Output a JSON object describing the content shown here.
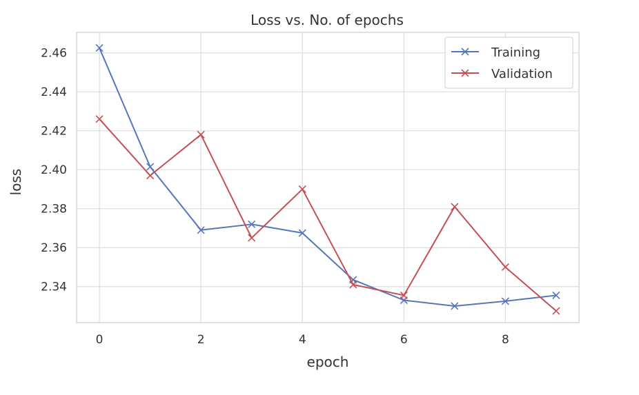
{
  "chart_data": {
    "type": "line",
    "title": "Loss vs. No. of epochs",
    "xlabel": "epoch",
    "ylabel": "loss",
    "x": [
      0,
      1,
      2,
      3,
      4,
      5,
      6,
      7,
      8,
      9
    ],
    "xlim": [
      -0.45,
      9.45
    ],
    "ylim": [
      2.3215,
      2.4705
    ],
    "xticks": [
      0,
      2,
      4,
      6,
      8
    ],
    "xtick_labels": [
      "0",
      "2",
      "4",
      "6",
      "8"
    ],
    "yticks": [
      2.34,
      2.36,
      2.38,
      2.4,
      2.42,
      2.44,
      2.46
    ],
    "ytick_labels": [
      "2.34",
      "2.36",
      "2.38",
      "2.40",
      "2.42",
      "2.44",
      "2.46"
    ],
    "grid": true,
    "legend_position": "top-right",
    "series": [
      {
        "name": "Training",
        "color": "#5475bb",
        "marker": "x",
        "values": [
          2.4625,
          2.4015,
          2.369,
          2.372,
          2.3675,
          2.3435,
          2.333,
          2.33,
          2.3325,
          2.3355
        ]
      },
      {
        "name": "Validation",
        "color": "#c44e52",
        "marker": "x",
        "values": [
          2.426,
          2.397,
          2.418,
          2.365,
          2.39,
          2.341,
          2.3355,
          2.381,
          2.35,
          2.3275
        ]
      }
    ]
  }
}
